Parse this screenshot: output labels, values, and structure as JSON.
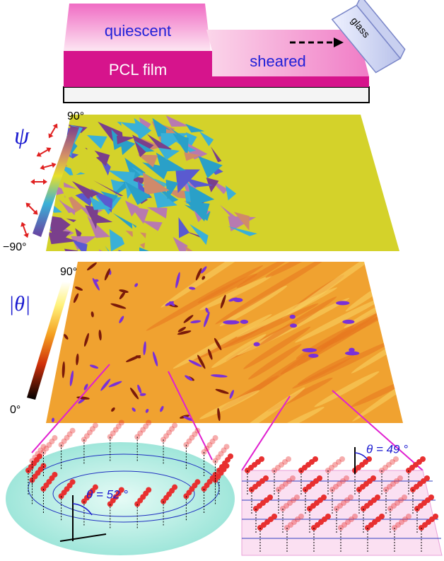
{
  "schematic": {
    "quiescent": "quiescent",
    "film": "PCL film",
    "sheared": "sheared",
    "glass": "glass"
  },
  "psi_map": {
    "symbol": "ψ",
    "max_label": "90°",
    "min_label": "−90°"
  },
  "theta_map": {
    "symbol": "|θ|",
    "max_label": "90°",
    "min_label": "0°"
  },
  "insets": [
    {
      "angle_label": "θ = 52 °"
    },
    {
      "angle_label": "θ = 49 °"
    }
  ]
}
